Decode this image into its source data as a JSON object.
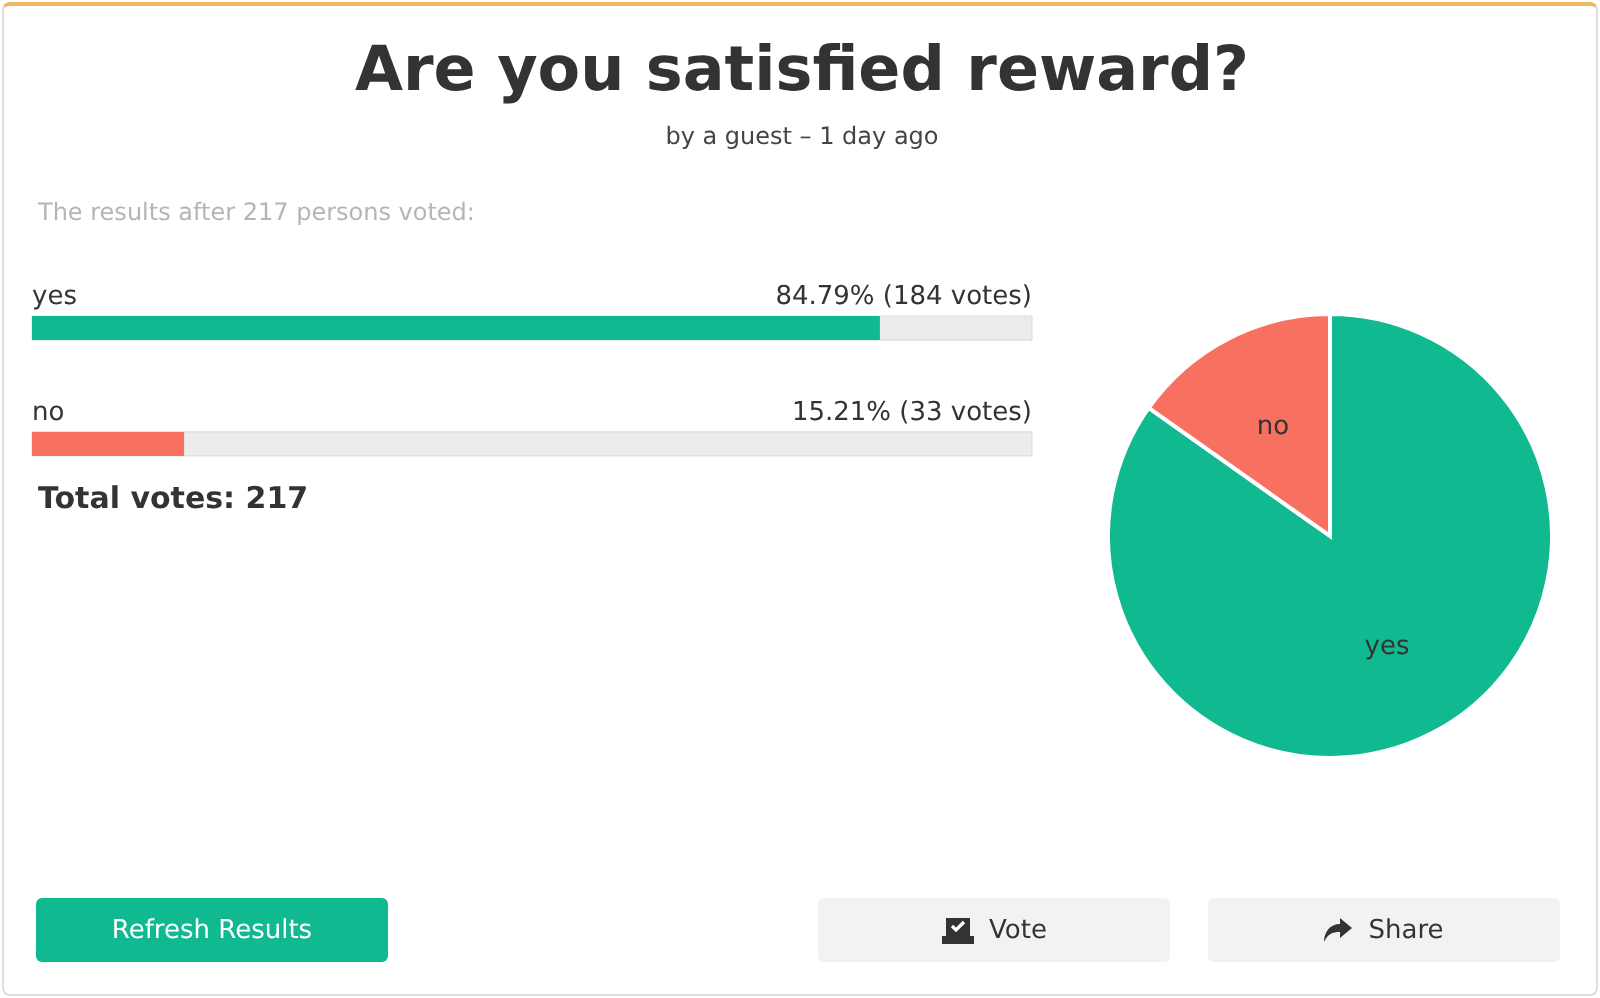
{
  "chart_data": [
    {
      "type": "bar",
      "title": "Are you satisfied reward?",
      "subtitle": "by a guest – 1 day ago",
      "orientation": "horizontal",
      "categories": [
        "yes",
        "no"
      ],
      "values": [
        84.79,
        15.21
      ],
      "colors": [
        "#10b990",
        "#f8705f"
      ],
      "value_labels": [
        "84.79% (184 votes)",
        "15.21% (33 votes)"
      ],
      "xlim": [
        0,
        100
      ],
      "tick_labels": false,
      "annotations": [
        "The results after 217 persons voted:",
        "Total votes: 217"
      ]
    },
    {
      "type": "pie",
      "categories": [
        "yes",
        "no"
      ],
      "values": [
        84.79,
        15.21
      ],
      "colors": [
        "#10b990",
        "#f8705f"
      ]
    },
    {
      "type": "other",
      "annotations": [
        "Refresh Results",
        "Vote",
        "Share"
      ]
    }
  ]
}
